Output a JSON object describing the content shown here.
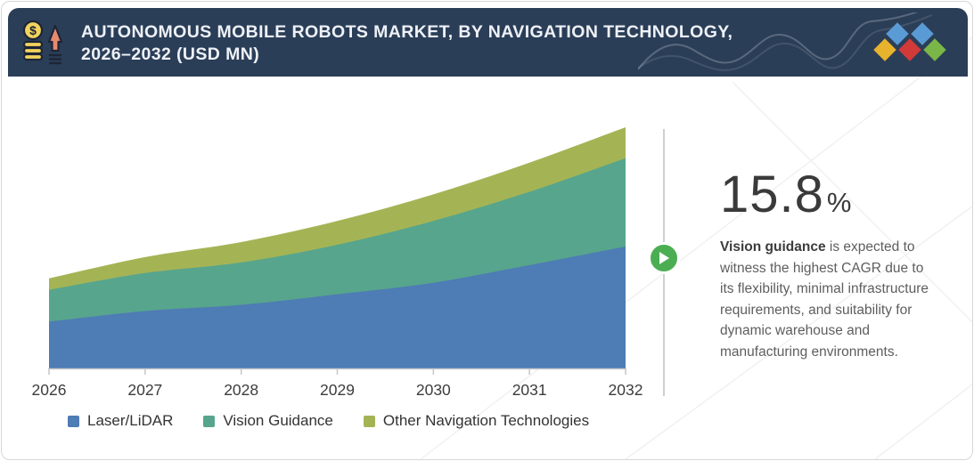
{
  "header": {
    "title_line1": "AUTONOMOUS MOBILE ROBOTS MARKET, BY NAVIGATION TECHNOLOGY,",
    "title_line2": "2026–2032 (USD MN)",
    "background_color": "#2b3e58",
    "title_color": "#eef1f6",
    "icon_name": "coins-growth-icon",
    "logo_name": "diamonds-logo",
    "logo_colors": {
      "blue": "#5b9bd5",
      "yellow": "#e8b32c",
      "red": "#d23a3a",
      "green": "#7ab648"
    }
  },
  "chart_data": {
    "type": "area",
    "stacked": true,
    "title": "Autonomous Mobile Robots Market, by Navigation Technology, 2026–2032 (USD MN)",
    "x": [
      2026,
      2027,
      2028,
      2029,
      2030,
      2031,
      2032
    ],
    "xlabel": "",
    "ylabel": "",
    "y_axis_visible": false,
    "units_note": "USD MN per title; y-axis values not shown in figure — series values are relative magnitudes estimated from band heights",
    "grid": false,
    "legend_position": "bottom",
    "series": [
      {
        "name": "Laser/LiDAR",
        "color": "#4e7cb4",
        "values": [
          53,
          65,
          72,
          84,
          97,
          117,
          138
        ]
      },
      {
        "name": "Vision Guidance",
        "color": "#57a58d",
        "values": [
          36,
          43,
          48,
          56,
          70,
          83,
          100
        ]
      },
      {
        "name": "Other Navigation Technologies",
        "color": "#a4b455",
        "values": [
          13,
          18,
          23,
          27,
          30,
          33,
          35
        ]
      }
    ],
    "axis_color": "#c9c9c9",
    "tick_label_color": "#3c3c3c"
  },
  "highlight": {
    "cagr_value": "15.8",
    "percent_sign": "%",
    "description_bold": "Vision guidance",
    "description_rest": " is expected to witness the highest CAGR due to its flexibility, minimal infrastructure requirements, and suitability for dynamic warehouse and manufacturing environments.",
    "play_icon_color": "#4bae52"
  }
}
